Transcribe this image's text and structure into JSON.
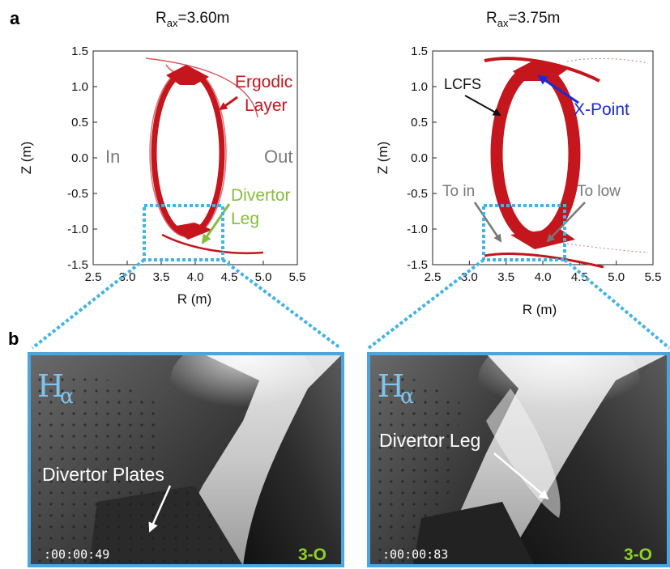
{
  "panel_a": {
    "letter": "a",
    "plots": [
      {
        "title_main": "R",
        "title_sub": "ax",
        "title_rest": "=3.60m",
        "xlabel": "R (m)",
        "ylabel": "Z (m)",
        "xticks": [
          "2.5",
          "3.0",
          "3.5",
          "4.0",
          "4.5",
          "5.0",
          "5.5"
        ],
        "yticks": [
          "1.5",
          "1.0",
          "0.5",
          "0.0",
          "-0.5",
          "-1.0",
          "-1.5"
        ],
        "label_in": "In",
        "label_out": "Out",
        "ergodic_line1": "Ergodic",
        "ergodic_line2": "Layer",
        "divertor_line1": "Divertor",
        "divertor_line2": "Leg"
      },
      {
        "title_main": "R",
        "title_sub": "ax",
        "title_rest": "=3.75m",
        "xlabel": "R (m)",
        "ylabel": "Z (m)",
        "xticks": [
          "2.5",
          "3.0",
          "3.5",
          "4.0",
          "4.5",
          "5.0",
          "5.5"
        ],
        "yticks": [
          "1.5",
          "1.0",
          "0.5",
          "0.0",
          "-0.5",
          "-1.0",
          "-1.5"
        ],
        "lcfs": "LCFS",
        "xpoint": "X-Point",
        "to_in": "To in",
        "to_low": "To low"
      }
    ]
  },
  "panel_b": {
    "letter": "b",
    "photos": [
      {
        "h": "H",
        "alpha": "α",
        "label": "Divertor Plates",
        "timecode": ":00:00:49",
        "camera": "3-O"
      },
      {
        "h": "H",
        "alpha": "α",
        "label": "Divertor Leg",
        "timecode": ":00:00:83",
        "camera": "3-O"
      }
    ]
  },
  "chart_data": [
    {
      "type": "scatter",
      "title": "Rax=3.60m",
      "xlabel": "R (m)",
      "ylabel": "Z (m)",
      "xlim": [
        2.5,
        5.5
      ],
      "ylim": [
        -1.5,
        1.5
      ],
      "annotations": [
        "In",
        "Out",
        "Ergodic Layer",
        "Divertor Leg"
      ]
    },
    {
      "type": "scatter",
      "title": "Rax=3.75m",
      "xlabel": "R (m)",
      "ylabel": "Z (m)",
      "xlim": [
        2.5,
        5.5
      ],
      "ylim": [
        -1.5,
        1.5
      ],
      "annotations": [
        "LCFS",
        "X-Point",
        "To in",
        "To low"
      ]
    }
  ],
  "colors": {
    "plasma": "#c4161c",
    "dashed_box": "#41b3e4",
    "photo_frame": "#4aa6dc"
  }
}
